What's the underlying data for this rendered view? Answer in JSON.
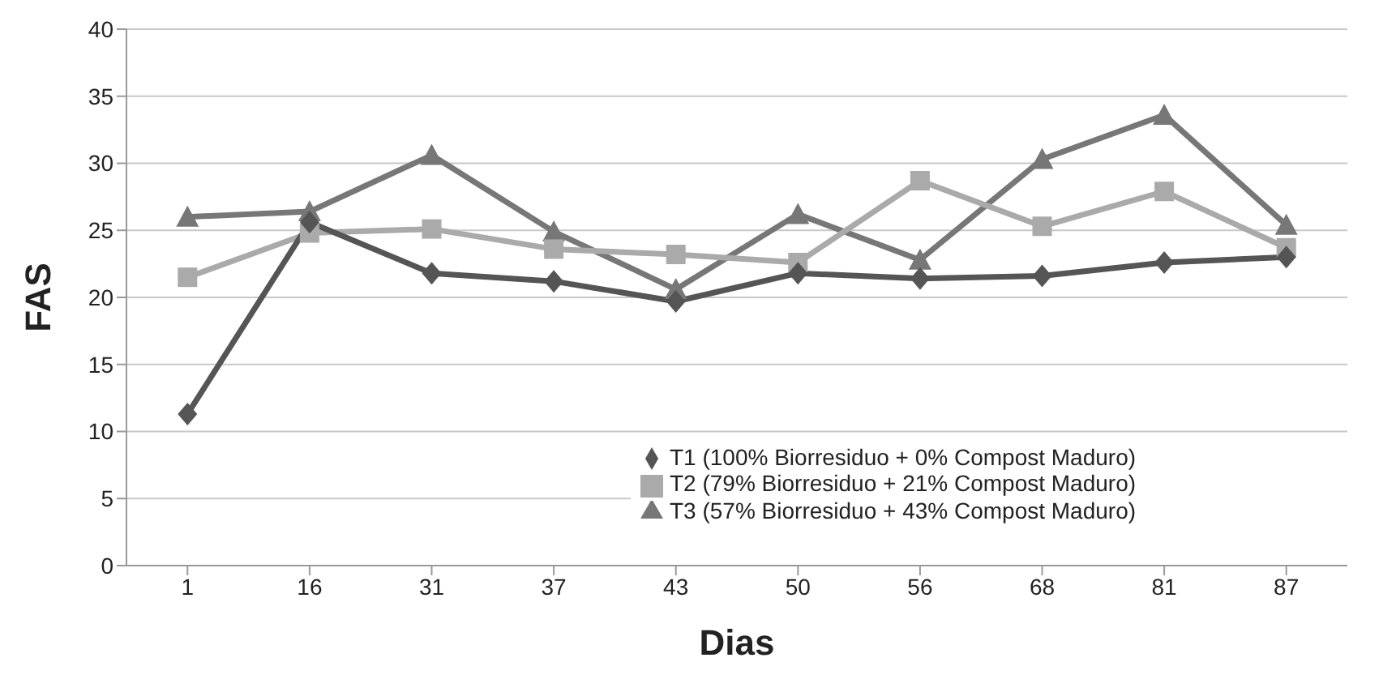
{
  "chart_data": {
    "type": "line",
    "xlabel": "Dias",
    "ylabel": "FAS",
    "categories": [
      "1",
      "16",
      "31",
      "37",
      "43",
      "50",
      "56",
      "68",
      "81",
      "87"
    ],
    "series": [
      {
        "name": "T1 (100% Biorresiduo + 0% Compost Maduro)",
        "color": "#555555",
        "marker": "diamond",
        "values": [
          11.3,
          25.6,
          21.8,
          21.2,
          19.7,
          21.8,
          21.4,
          21.6,
          22.6,
          23.0
        ]
      },
      {
        "name": "T2  (79% Biorresiduo + 21% Compost Maduro)",
        "color": "#aaaaaa",
        "marker": "square",
        "values": [
          21.5,
          24.8,
          25.1,
          23.6,
          23.2,
          22.6,
          28.7,
          25.3,
          27.9,
          23.7
        ]
      },
      {
        "name": "T3  (57% Biorresiduo + 43% Compost Maduro)",
        "color": "#777777",
        "marker": "triangle",
        "values": [
          26.0,
          26.4,
          30.6,
          24.9,
          20.6,
          26.2,
          22.8,
          30.3,
          33.6,
          25.4
        ]
      }
    ],
    "ylim": [
      0,
      40
    ],
    "yticks": [
      0,
      5,
      10,
      15,
      20,
      25,
      30,
      35,
      40
    ],
    "grid": "y",
    "legend": "bottom right",
    "line_style": "solid"
  }
}
